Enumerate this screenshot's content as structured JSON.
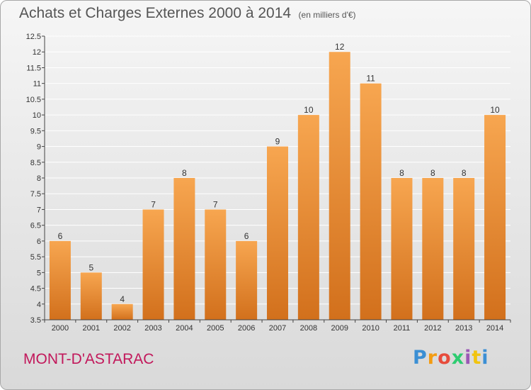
{
  "header": {
    "title": "Achats et Charges Externes 2000 à 2014",
    "subtitle": "(en milliers d'€)"
  },
  "footer": {
    "place": "MONT-D'ASTARAC",
    "logo": {
      "text": "Proxiti",
      "letters": [
        {
          "char": "P",
          "color": "#3b8fd4"
        },
        {
          "char": "r",
          "color": "#f39c12"
        },
        {
          "char": "o",
          "color": "#e74c3c"
        },
        {
          "char": "x",
          "color": "#2ecc71"
        },
        {
          "char": "i",
          "color": "#9b59b6"
        },
        {
          "char": "t",
          "color": "#f1c40f"
        },
        {
          "char": "i",
          "color": "#3b8fd4"
        }
      ]
    }
  },
  "chart_data": {
    "type": "bar",
    "categories": [
      "2000",
      "2001",
      "2002",
      "2003",
      "2004",
      "2005",
      "2006",
      "2007",
      "2008",
      "2009",
      "2010",
      "2011",
      "2012",
      "2013",
      "2014"
    ],
    "values": [
      6,
      5,
      4,
      7,
      8,
      7,
      6,
      9,
      10,
      12,
      11,
      8,
      8,
      8,
      10
    ],
    "data_labels": [
      "6",
      "5",
      "4",
      "7",
      "8",
      "7",
      "6",
      "9",
      "10",
      "12",
      "11",
      "8",
      "8",
      "8",
      "10"
    ],
    "ylim": [
      3.5,
      12.5
    ],
    "yticks": [
      "3.5",
      "4",
      "4.5",
      "5",
      "5.5",
      "6",
      "6.5",
      "7",
      "7.5",
      "8",
      "8.5",
      "9",
      "9.5",
      "10",
      "10.5",
      "11",
      "11.5",
      "12",
      "12.5"
    ],
    "grid": true,
    "colors": {
      "bar_light": "#f7a650",
      "bar_dark": "#d2701c",
      "grid": "#ffffff",
      "axis": "#444444",
      "text": "#333333"
    }
  }
}
